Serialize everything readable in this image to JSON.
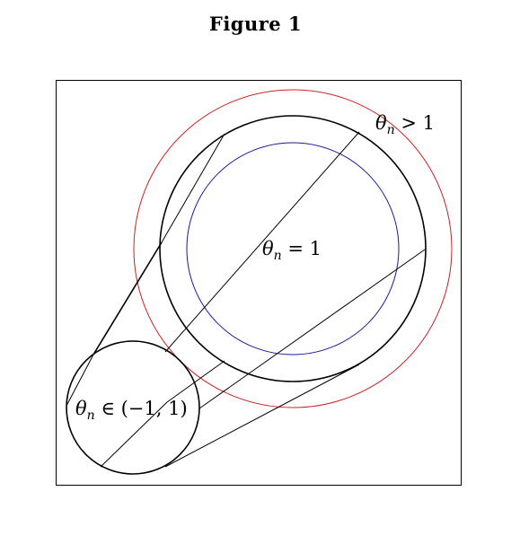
{
  "figure": {
    "title": "Figure 1"
  },
  "labels": {
    "outer": {
      "symbol": "θ",
      "subscript": "n",
      "relation": " > 1"
    },
    "center": {
      "symbol": "θ",
      "subscript": "n",
      "relation": " = 1"
    },
    "small": {
      "symbol": "θ",
      "subscript": "n",
      "relation": " ∈ (−1, 1)"
    }
  },
  "colors": {
    "red_circle": "#cc2222",
    "blue_circle": "#1a1a99",
    "black": "#000000"
  }
}
